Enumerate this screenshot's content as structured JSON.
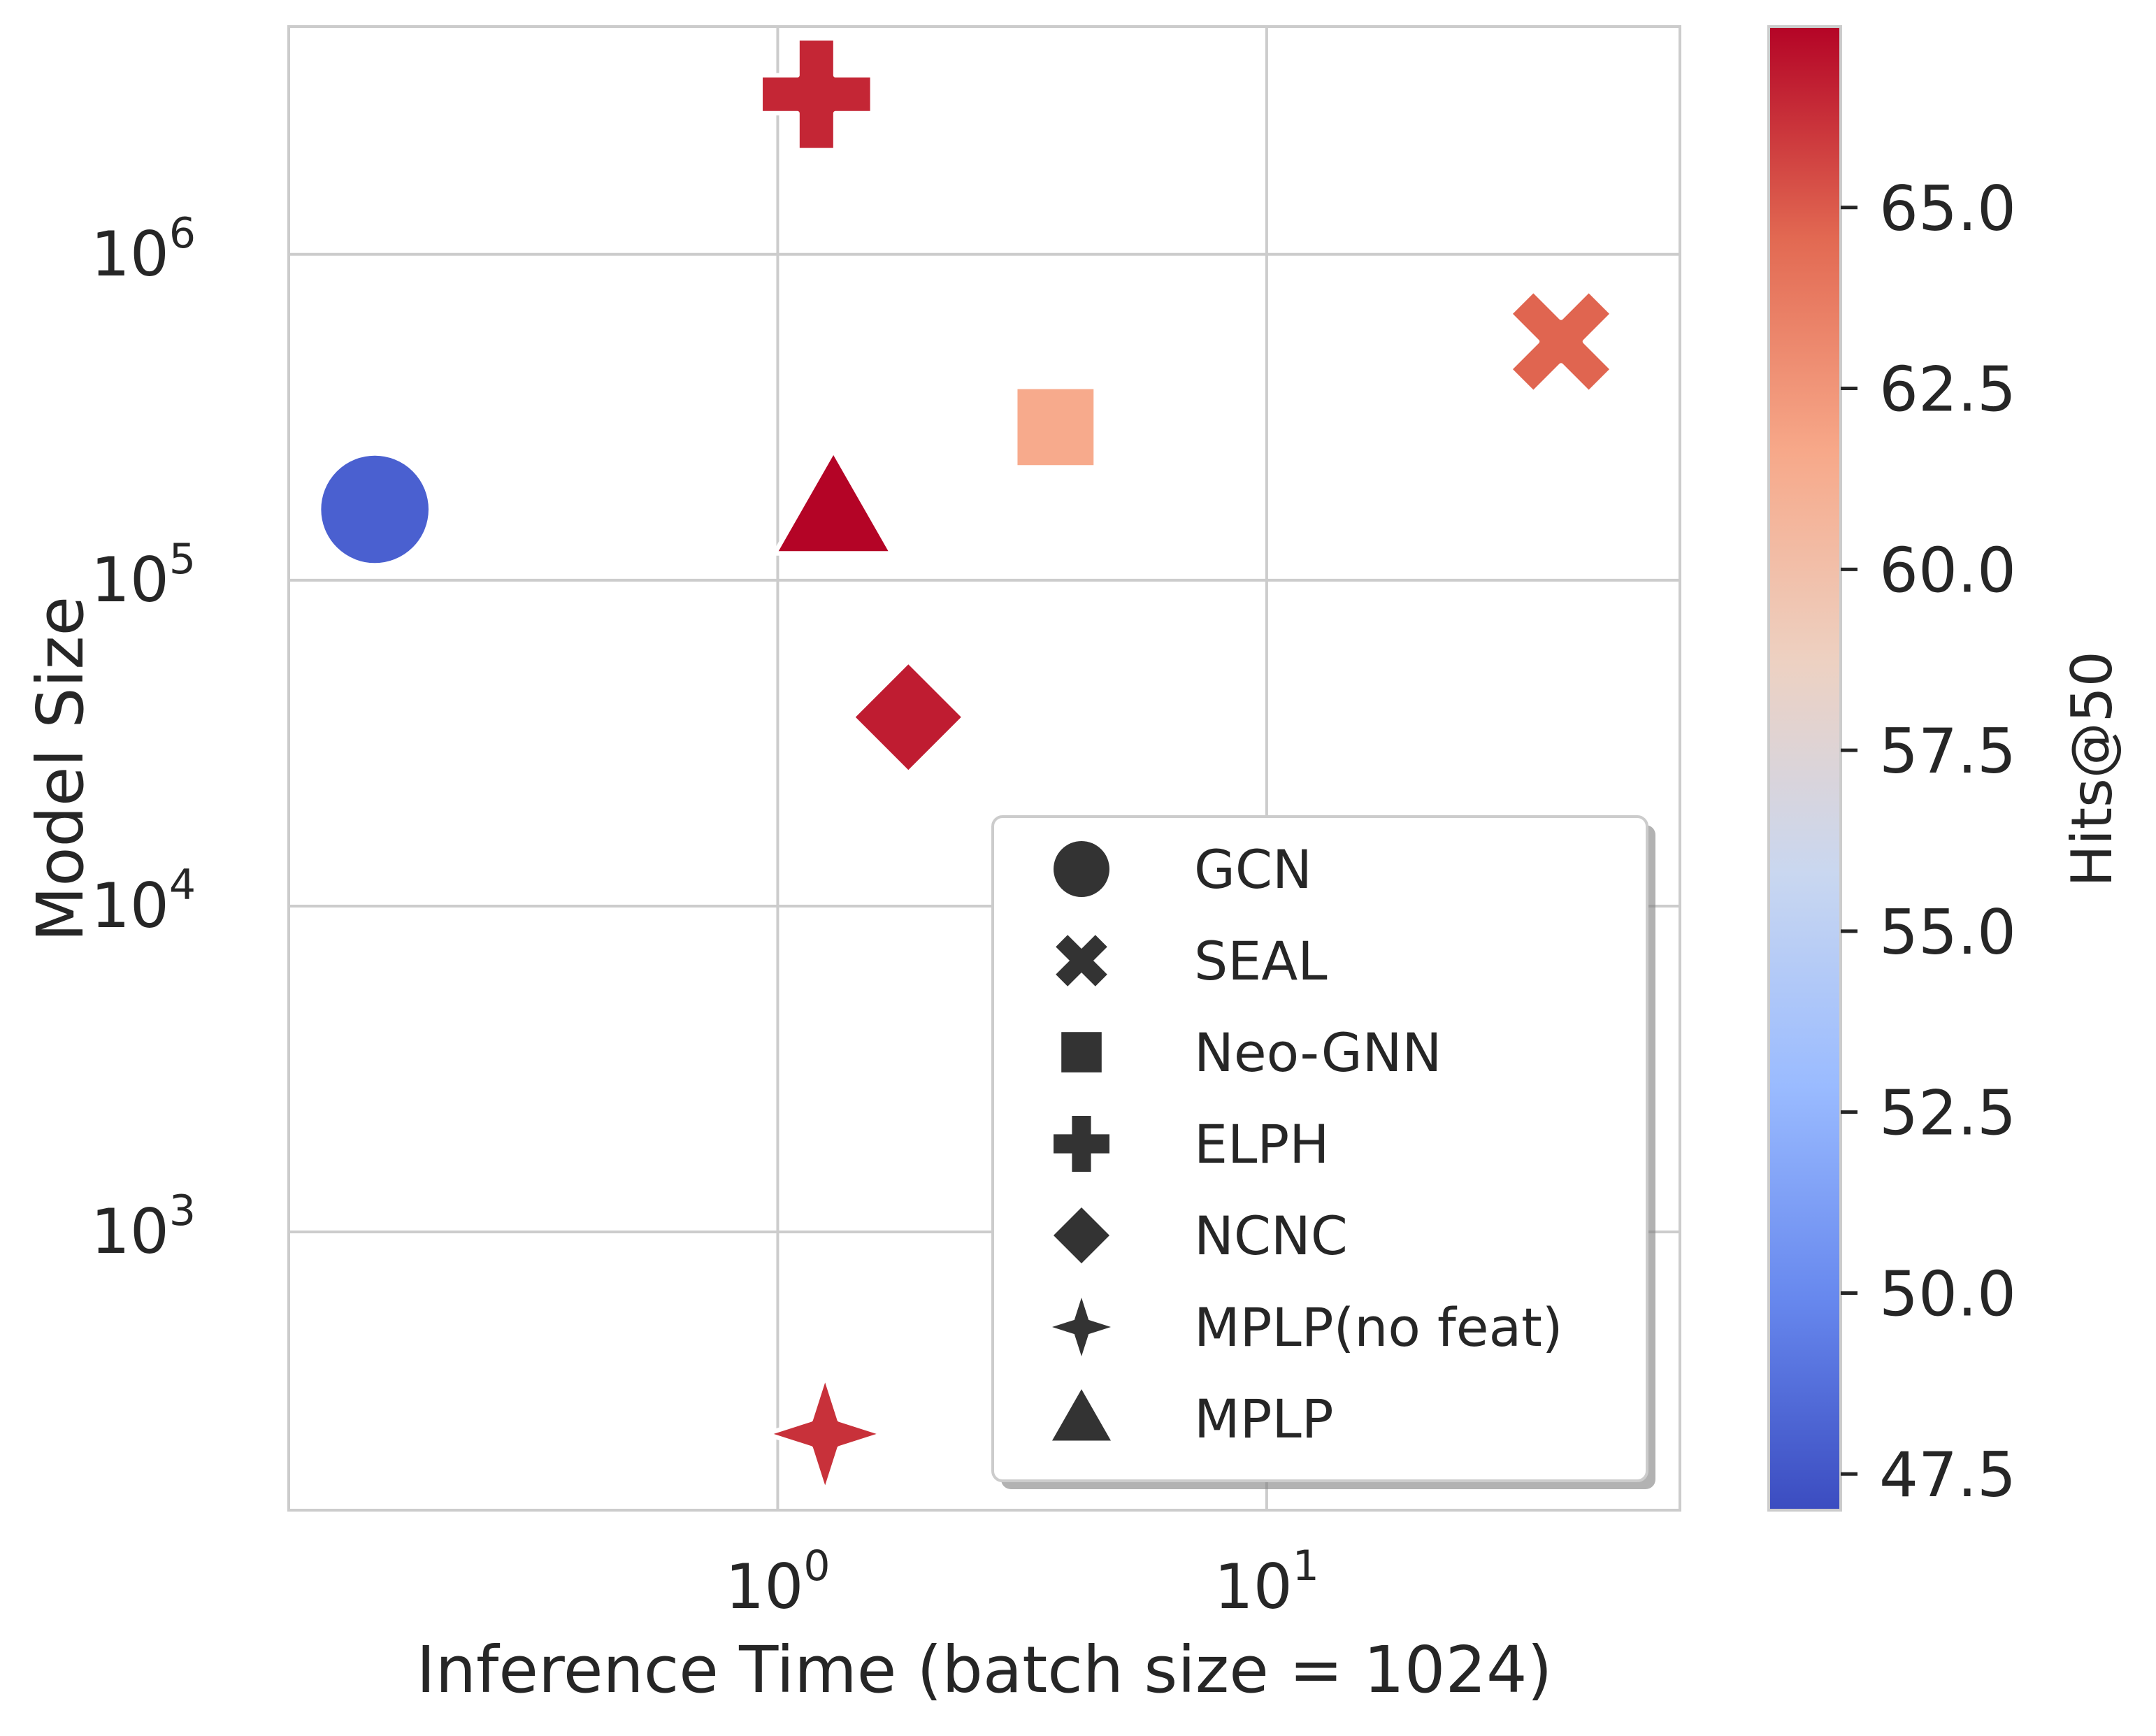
{
  "chart_data": {
    "type": "scatter",
    "title": "",
    "xlabel": "Inference Time (batch size = 1024)",
    "ylabel": "Model Size",
    "xscale": "log",
    "yscale": "log",
    "xlim": [
      0.1,
      70
    ],
    "ylim": [
      140,
      5000000
    ],
    "x_ticks": [
      {
        "base": "10",
        "exp": "0",
        "value": 1
      },
      {
        "base": "10",
        "exp": "1",
        "value": 10
      }
    ],
    "y_ticks": [
      {
        "base": "10",
        "exp": "3",
        "value": 1000
      },
      {
        "base": "10",
        "exp": "4",
        "value": 10000
      },
      {
        "base": "10",
        "exp": "5",
        "value": 100000
      },
      {
        "base": "10",
        "exp": "6",
        "value": 1000000
      }
    ],
    "grid": true,
    "points": [
      {
        "label": "GCN",
        "marker": "circle",
        "x": 0.15,
        "y": 165000,
        "hits": 48.0
      },
      {
        "label": "SEAL",
        "marker": "x",
        "x": 40,
        "y": 540000,
        "hits": 64.7
      },
      {
        "label": "Neo-GNN",
        "marker": "square",
        "x": 3.7,
        "y": 295000,
        "hits": 61.5
      },
      {
        "label": "ELPH",
        "marker": "plus",
        "x": 1.2,
        "y": 3100000,
        "hits": 66.5
      },
      {
        "label": "NCNC",
        "marker": "diamond",
        "x": 1.85,
        "y": 38000,
        "hits": 66.8
      },
      {
        "label": "MPLP(no feat)",
        "marker": "star",
        "x": 1.25,
        "y": 240,
        "hits": 66.2
      },
      {
        "label": "MPLP",
        "marker": "triangle",
        "x": 1.3,
        "y": 165000,
        "hits": 67.5
      }
    ],
    "legend": {
      "position": "lower-right",
      "entries": [
        {
          "label": "GCN",
          "marker": "circle"
        },
        {
          "label": "SEAL",
          "marker": "x"
        },
        {
          "label": "Neo-GNN",
          "marker": "square"
        },
        {
          "label": "ELPH",
          "marker": "plus"
        },
        {
          "label": "NCNC",
          "marker": "diamond"
        },
        {
          "label": "MPLP(no feat)",
          "marker": "star"
        },
        {
          "label": "MPLP",
          "marker": "triangle"
        }
      ]
    },
    "colorbar": {
      "label": "Hits@50",
      "colormap": "coolwarm",
      "range": [
        47.0,
        67.5
      ],
      "ticks": [
        "47.5",
        "50.0",
        "52.5",
        "55.0",
        "57.5",
        "60.0",
        "62.5",
        "65.0"
      ],
      "colors": [
        "#3b4cc0",
        "#6788ee",
        "#9abbff",
        "#c9d7f0",
        "#edd1c2",
        "#f7a889",
        "#e26952",
        "#b40426"
      ]
    }
  }
}
